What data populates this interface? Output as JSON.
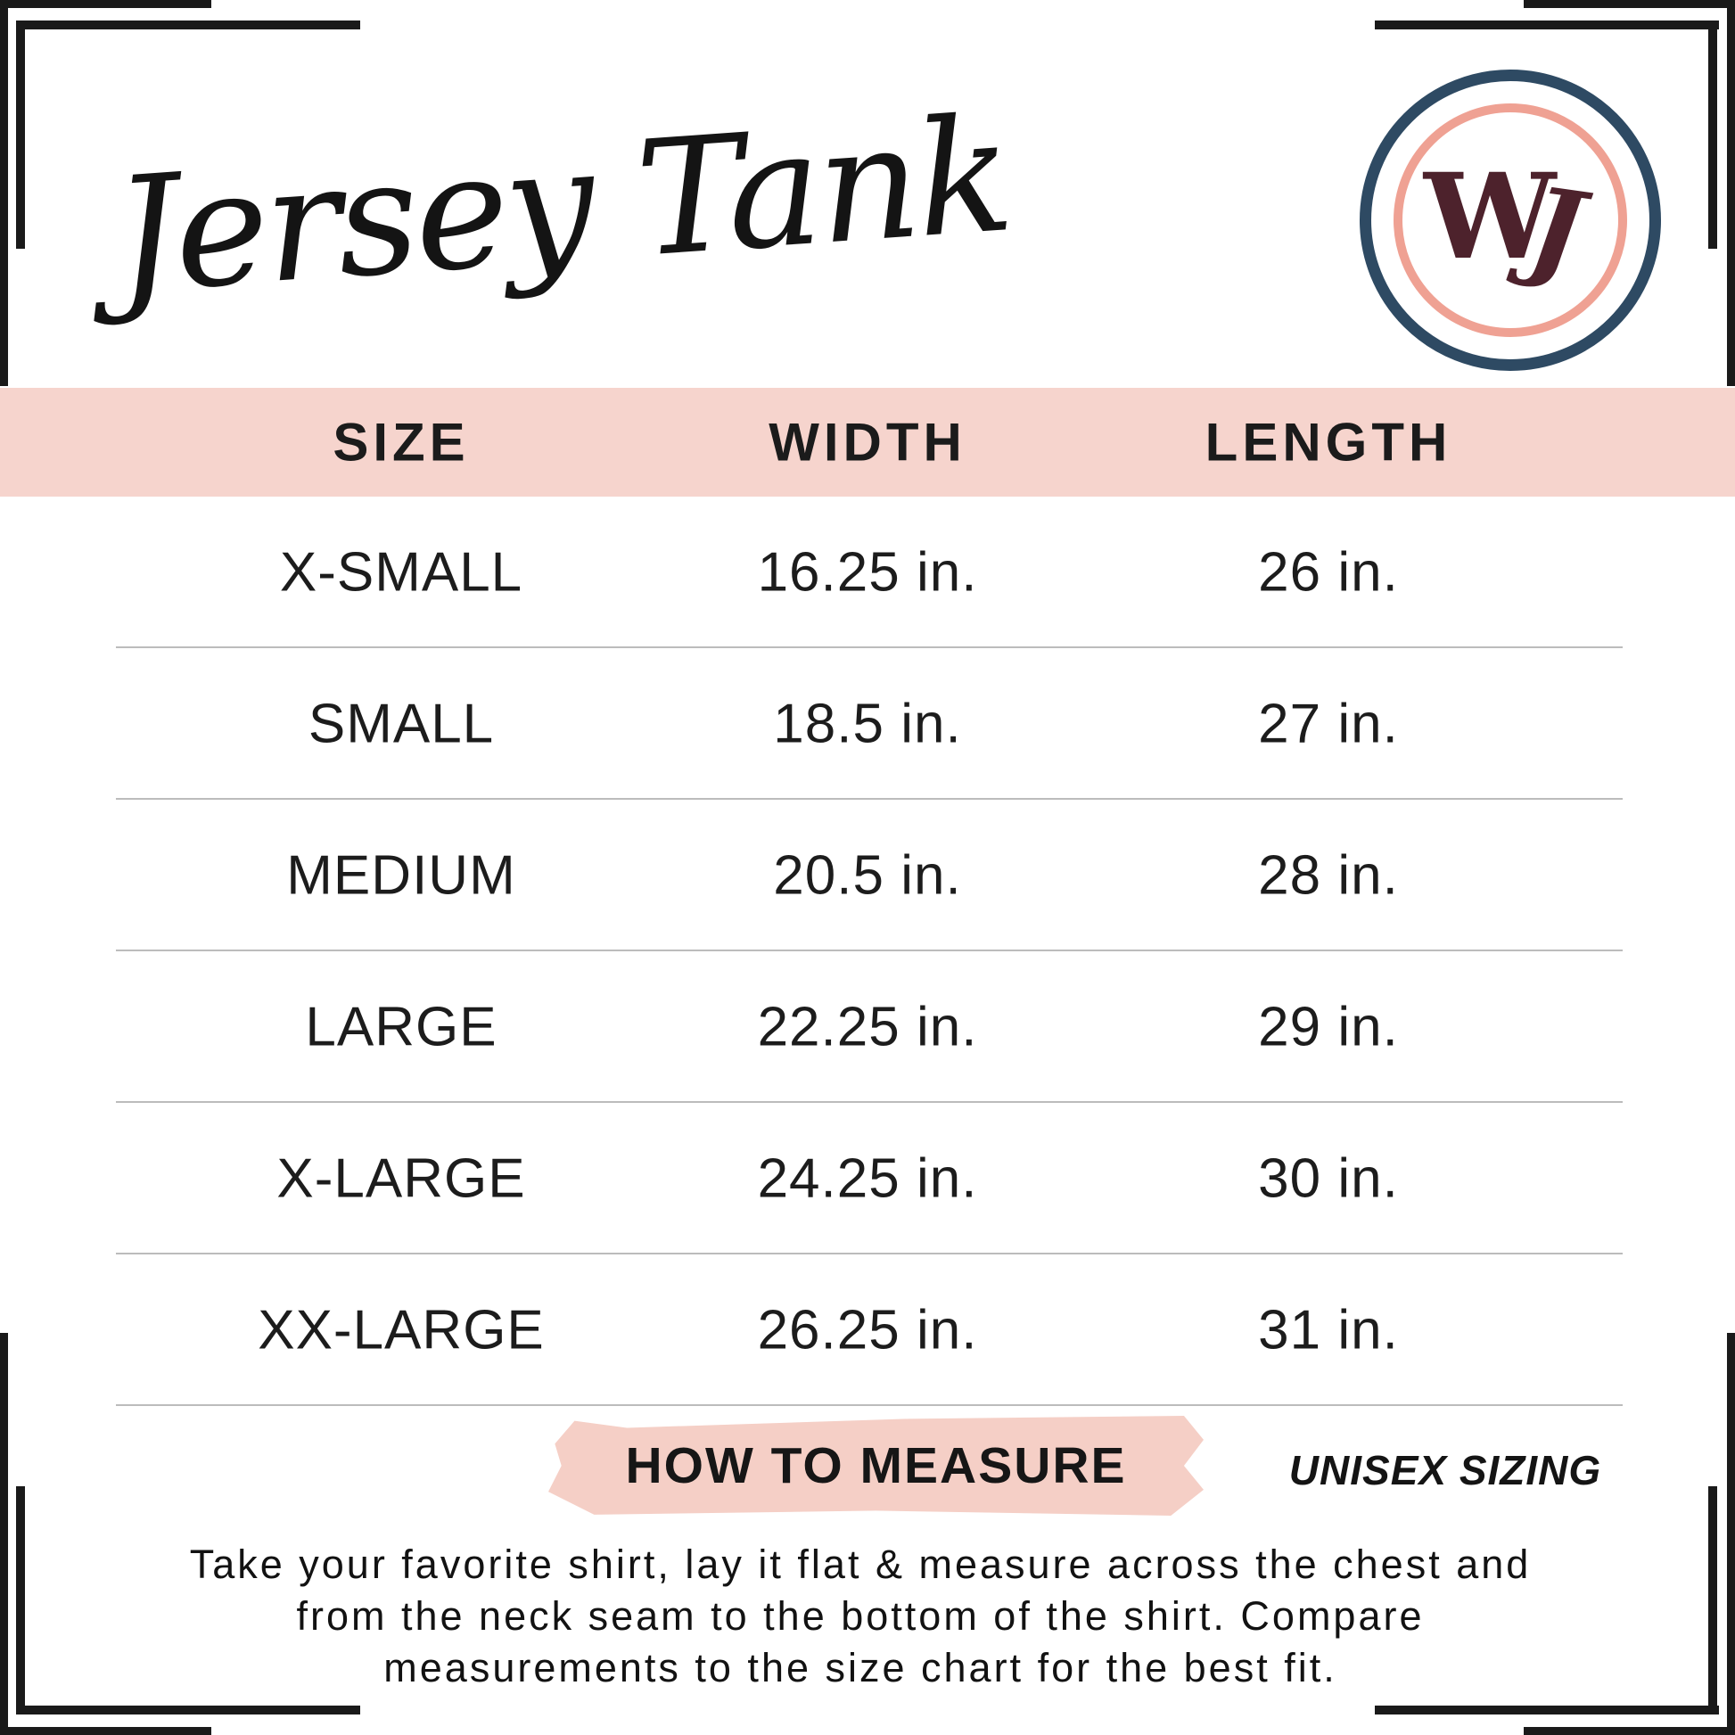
{
  "title": "Jersey Tank",
  "brand_logo": {
    "monogram": "WJ",
    "monogram_w": "W",
    "monogram_j": "J"
  },
  "colors": {
    "accent_pink": "#f6d4cd",
    "brush_pink": "#f5cfc6",
    "logo_navy": "#2e4a63",
    "logo_pink": "#efa193",
    "logo_maroon": "#4d222c",
    "divider_gray": "#bcbcbc",
    "text_black": "#1c1c1c"
  },
  "table": {
    "columns": [
      "SIZE",
      "WIDTH",
      "LENGTH"
    ],
    "rows": [
      {
        "size": "X-SMALL",
        "width": "16.25 in.",
        "length": "26 in."
      },
      {
        "size": "SMALL",
        "width": "18.5 in.",
        "length": "27 in."
      },
      {
        "size": "MEDIUM",
        "width": "20.5 in.",
        "length": "28 in."
      },
      {
        "size": "LARGE",
        "width": "22.25 in.",
        "length": "29 in."
      },
      {
        "size": "X-LARGE",
        "width": "24.25 in.",
        "length": "30 in."
      },
      {
        "size": "XX-LARGE",
        "width": "26.25 in.",
        "length": "31 in."
      }
    ]
  },
  "how_to_measure": {
    "label": "HOW TO MEASURE",
    "sizing_note": "UNISEX SIZING",
    "instruction_lines": [
      "Take your favorite shirt, lay it flat & measure across the chest and",
      "from the neck seam to the bottom of the shirt. Compare",
      "measurements to the size chart for the best fit."
    ]
  }
}
